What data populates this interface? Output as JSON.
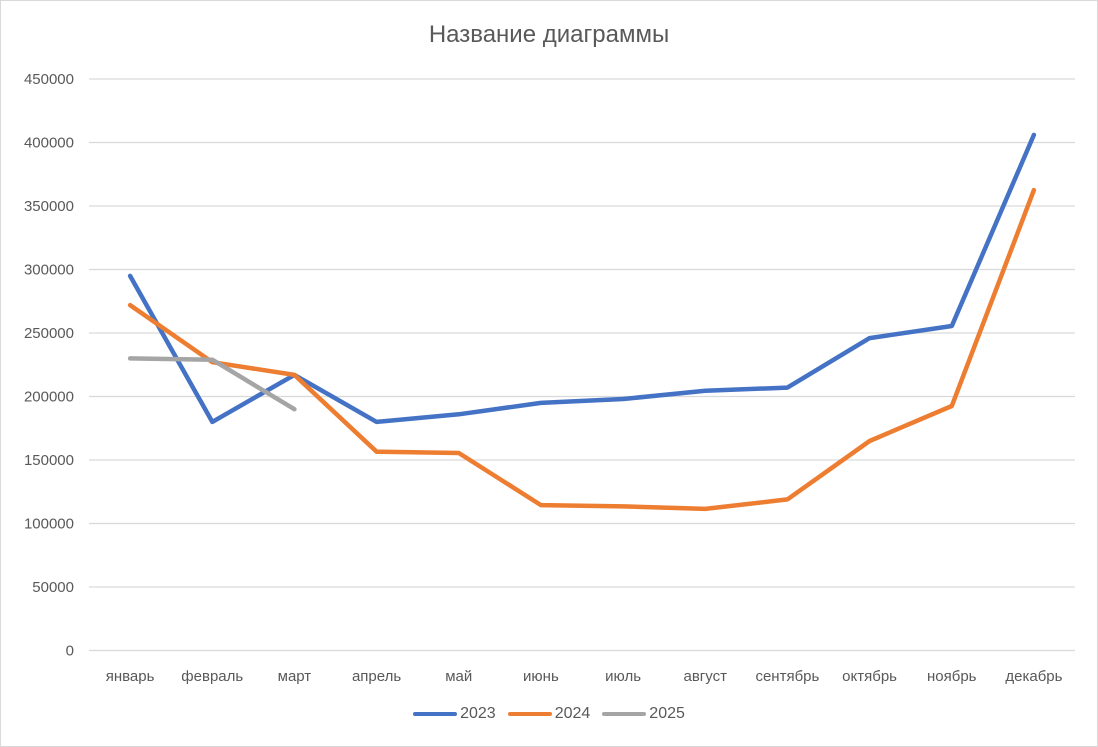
{
  "chart": {
    "title": "Название диаграммы"
  },
  "chart_data": {
    "type": "line",
    "title": "Название диаграммы",
    "xlabel": "",
    "ylabel": "",
    "categories": [
      "январь",
      "февраль",
      "март",
      "апрель",
      "май",
      "июнь",
      "июль",
      "август",
      "сентябрь",
      "октябрь",
      "ноябрь",
      "декабрь"
    ],
    "series": [
      {
        "name": "2023",
        "color": "#4472C4",
        "values": [
          295000,
          180000,
          217000,
          180000,
          186000,
          195000,
          198000,
          204500,
          207000,
          246000,
          255500,
          406000
        ]
      },
      {
        "name": "2024",
        "color": "#ED7D31",
        "values": [
          272000,
          227000,
          217000,
          156500,
          155500,
          114500,
          113500,
          111500,
          119000,
          165000,
          192500,
          362500
        ]
      },
      {
        "name": "2025",
        "color": "#A5A5A5",
        "values": [
          230000,
          229000,
          190000
        ]
      }
    ],
    "yticks": [
      "0",
      "50000",
      "100000",
      "150000",
      "200000",
      "250000",
      "300000",
      "350000",
      "400000",
      "450000"
    ],
    "ylim": [
      0,
      450000
    ],
    "grid": true,
    "legend_position": "bottom"
  }
}
